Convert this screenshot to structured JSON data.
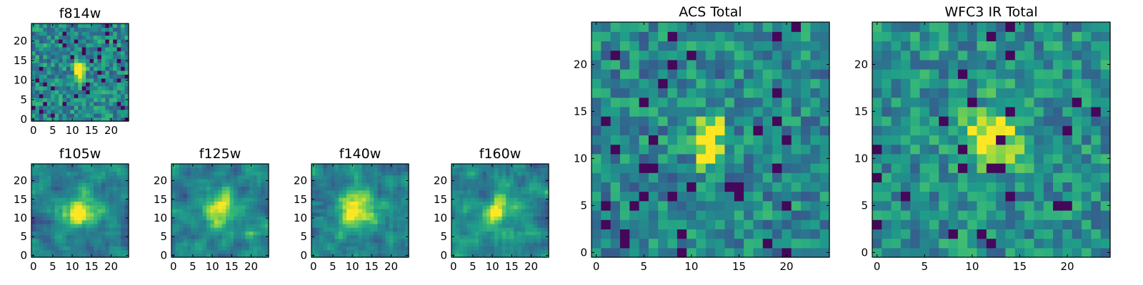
{
  "chart_data": [
    {
      "type": "heatmap",
      "title": "f814w",
      "x_ticks": [
        "0",
        "5",
        "10",
        "15",
        "20"
      ],
      "y_ticks": [
        "0",
        "5",
        "10",
        "15",
        "20"
      ],
      "xlim": [
        -0.5,
        24.5
      ],
      "ylim": [
        -0.5,
        24.5
      ],
      "grid_size": 25,
      "source_center": [
        12,
        12
      ],
      "source_shape": "compact-elongated",
      "colormap": "viridis"
    },
    {
      "type": "heatmap",
      "title": "f105w",
      "x_ticks": [
        "0",
        "5",
        "10",
        "15",
        "20"
      ],
      "y_ticks": [
        "0",
        "5",
        "10",
        "15",
        "20"
      ],
      "xlim": [
        -0.5,
        24.5
      ],
      "ylim": [
        -0.5,
        24.5
      ],
      "grid_size": 25,
      "source_center": [
        12,
        12
      ],
      "source_shape": "smooth-diffuse",
      "colormap": "viridis"
    },
    {
      "type": "heatmap",
      "title": "f125w",
      "x_ticks": [
        "0",
        "5",
        "10",
        "15",
        "20"
      ],
      "y_ticks": [
        "0",
        "5",
        "10",
        "15",
        "20"
      ],
      "xlim": [
        -0.5,
        24.5
      ],
      "ylim": [
        -0.5,
        24.5
      ],
      "grid_size": 25,
      "source_center": [
        12,
        12
      ],
      "source_shape": "smooth-diffuse",
      "colormap": "viridis"
    },
    {
      "type": "heatmap",
      "title": "f140w",
      "x_ticks": [
        "0",
        "5",
        "10",
        "15",
        "20"
      ],
      "y_ticks": [
        "0",
        "5",
        "10",
        "15",
        "20"
      ],
      "xlim": [
        -0.5,
        24.5
      ],
      "ylim": [
        -0.5,
        24.5
      ],
      "grid_size": 25,
      "source_center": [
        11,
        12
      ],
      "source_shape": "smooth-diffuse",
      "colormap": "viridis"
    },
    {
      "type": "heatmap",
      "title": "f160w",
      "x_ticks": [
        "0",
        "5",
        "10",
        "15",
        "20"
      ],
      "y_ticks": [
        "0",
        "5",
        "10",
        "15",
        "20"
      ],
      "xlim": [
        -0.5,
        24.5
      ],
      "ylim": [
        -0.5,
        24.5
      ],
      "grid_size": 25,
      "source_center": [
        12,
        12
      ],
      "source_shape": "smooth-diffuse",
      "colormap": "viridis"
    },
    {
      "type": "heatmap",
      "title": "ACS Total",
      "x_ticks": [
        "0",
        "5",
        "10",
        "15",
        "20"
      ],
      "y_ticks": [
        "0",
        "5",
        "10",
        "15",
        "20"
      ],
      "xlim": [
        -0.5,
        24.5
      ],
      "ylim": [
        -0.5,
        24.5
      ],
      "grid_size": 25,
      "source_center": [
        12,
        12
      ],
      "source_shape": "compact-elongated",
      "colormap": "viridis"
    },
    {
      "type": "heatmap",
      "title": "WFC3 IR Total",
      "x_ticks": [
        "0",
        "5",
        "10",
        "15",
        "20"
      ],
      "y_ticks": [
        "0",
        "5",
        "10",
        "15",
        "20"
      ],
      "xlim": [
        -0.5,
        24.5
      ],
      "ylim": [
        -0.5,
        24.5
      ],
      "grid_size": 25,
      "source_center": [
        12,
        12
      ],
      "source_shape": "compact-round",
      "colormap": "viridis"
    }
  ]
}
